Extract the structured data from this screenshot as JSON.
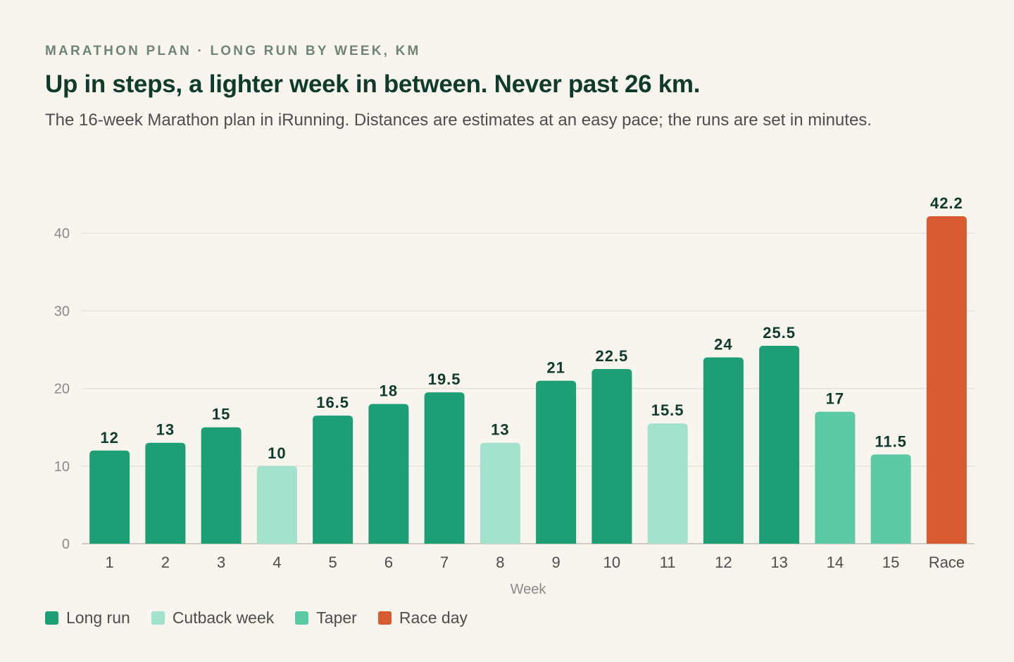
{
  "header": {
    "eyebrow": "MARATHON PLAN · LONG RUN BY WEEK, KM",
    "title": "Up in steps, a lighter week in between. Never past 26 km.",
    "subtitle": "The 16-week Marathon plan in iRunning. Distances are estimates at an easy pace; the runs are set in minutes."
  },
  "legend": [
    {
      "label": "Long run",
      "color": "#1e9e75"
    },
    {
      "label": "Cutback week",
      "color": "#a2e1cb"
    },
    {
      "label": "Taper",
      "color": "#5bc9a3"
    },
    {
      "label": "Race day",
      "color": "#d85b31"
    }
  ],
  "chart_data": {
    "type": "bar",
    "categories": [
      "1",
      "2",
      "3",
      "4",
      "5",
      "6",
      "7",
      "8",
      "9",
      "10",
      "11",
      "12",
      "13",
      "14",
      "15",
      "Race"
    ],
    "values": [
      12,
      13,
      15,
      10,
      16.5,
      18,
      19.5,
      13,
      21,
      22.5,
      15.5,
      24,
      25.5,
      17,
      11.5,
      42.2
    ],
    "value_labels": [
      "12",
      "13",
      "15",
      "10",
      "16.5",
      "18",
      "19.5",
      "13",
      "21",
      "22.5",
      "15.5",
      "24",
      "25.5",
      "17",
      "11.5",
      "42.2"
    ],
    "kinds": [
      "Long run",
      "Long run",
      "Long run",
      "Cutback week",
      "Long run",
      "Long run",
      "Long run",
      "Cutback week",
      "Long run",
      "Long run",
      "Cutback week",
      "Long run",
      "Long run",
      "Taper",
      "Taper",
      "Race day"
    ],
    "xlabel": "Week",
    "ylabel": "",
    "ylim": [
      0,
      42.2
    ],
    "yticks": [
      0,
      10,
      20,
      30,
      40
    ],
    "grid": true,
    "legend_position": "bottom-left"
  }
}
